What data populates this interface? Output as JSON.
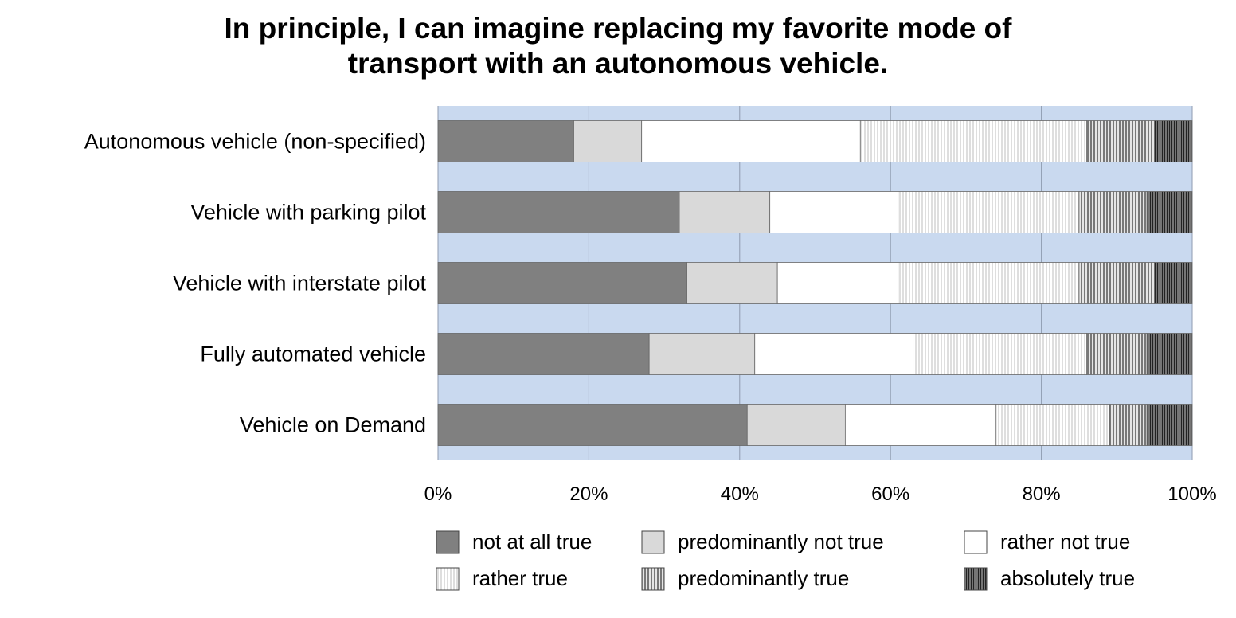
{
  "chart_data": {
    "type": "bar",
    "orientation": "horizontal",
    "stacked": "100%",
    "title_lines": [
      "In principle, I can imagine replacing my favorite mode of",
      "transport with an autonomous vehicle."
    ],
    "categories": [
      "Autonomous vehicle (non-specified)",
      "Vehicle with parking pilot",
      "Vehicle with interstate pilot",
      "Fully automated vehicle",
      "Vehicle on Demand"
    ],
    "series": [
      {
        "name": "not at all true",
        "color": "#808080",
        "pattern": "solid",
        "values": [
          18,
          32,
          33,
          28,
          41
        ]
      },
      {
        "name": "predominantly not true",
        "color": "#d9d9d9",
        "pattern": "solid",
        "values": [
          9,
          12,
          12,
          14,
          13
        ]
      },
      {
        "name": "rather not true",
        "color": "#ffffff",
        "pattern": "solid",
        "values": [
          29,
          17,
          16,
          21,
          20
        ]
      },
      {
        "name": "rather true",
        "color": "#f4f4f4",
        "pattern": "fine-vertical",
        "values": [
          30,
          24,
          24,
          23,
          15
        ]
      },
      {
        "name": "predominantly true",
        "color": "#bdbdbd",
        "pattern": "medium-vertical",
        "values": [
          9,
          9,
          10,
          8,
          5
        ]
      },
      {
        "name": "absolutely true",
        "color": "#6e6e6e",
        "pattern": "dense-vertical",
        "values": [
          5,
          6,
          5,
          6,
          6
        ]
      }
    ],
    "xlim": [
      0,
      100
    ],
    "x_ticks": [
      "0%",
      "20%",
      "40%",
      "60%",
      "80%",
      "100%"
    ],
    "x_tick_values": [
      0,
      20,
      40,
      60,
      80,
      100
    ],
    "xlabel": "",
    "ylabel": "",
    "grid": true,
    "plot_background": "#c9d9ef",
    "legend_position": "bottom"
  }
}
